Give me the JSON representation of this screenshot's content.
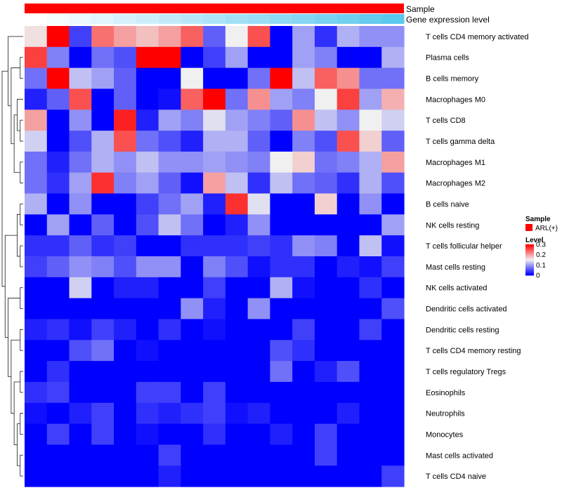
{
  "chart_data": {
    "type": "heatmap",
    "title": "",
    "annotation_rows": [
      {
        "name": "Sample",
        "kind": "solid",
        "color": "#ff0000"
      },
      {
        "name": "Gene expression level",
        "kind": "gradient",
        "color_from": "#ffffff",
        "color_to": "#5bc8ee"
      }
    ],
    "rows": [
      "T cells CD4 memory activated",
      "Plasma cells",
      "B cells memory",
      "Macrophages M0",
      "T cells CD8",
      "T cells gamma delta",
      "Macrophages M1",
      "Macrophages M2",
      "B cells naive",
      "NK cells resting",
      "T cells follicular helper",
      "Mast cells resting",
      "NK cells activated",
      "Dendritic cells activated",
      "Dendritic cells resting",
      "T cells CD4 memory resting",
      "T cells regulatory  Tregs",
      "Eosinophils",
      "Neutrophils",
      "Monocytes",
      "Mast cells activated",
      "T cells CD4 naive"
    ],
    "n_columns": 17,
    "values": [
      [
        0.16,
        0.3,
        0.04,
        0.23,
        0.2,
        0.18,
        0.2,
        0.24,
        0.06,
        0.15,
        0.25,
        0.0,
        0.1,
        0.03,
        0.11,
        0.09,
        0.09
      ],
      [
        0.26,
        0.08,
        0.0,
        0.07,
        0.05,
        0.3,
        0.3,
        0.0,
        0.04,
        0.1,
        0.0,
        0.0,
        0.1,
        0.08,
        0.0,
        0.0,
        0.11
      ],
      [
        0.07,
        0.3,
        0.12,
        0.1,
        0.06,
        0.0,
        0.0,
        0.15,
        0.0,
        0.0,
        0.07,
        0.3,
        0.12,
        0.24,
        0.21,
        0.07,
        0.07
      ],
      [
        0.02,
        0.06,
        0.25,
        0.0,
        0.06,
        0.0,
        0.01,
        0.24,
        0.3,
        0.07,
        0.21,
        0.1,
        0.08,
        0.15,
        0.26,
        0.1,
        0.19
      ],
      [
        0.2,
        0.0,
        0.09,
        0.0,
        0.28,
        0.02,
        0.1,
        0.08,
        0.14,
        0.1,
        0.08,
        0.06,
        0.21,
        0.12,
        0.09,
        0.15,
        0.13
      ],
      [
        0.13,
        0.0,
        0.05,
        0.11,
        0.25,
        0.07,
        0.05,
        0.02,
        0.11,
        0.11,
        0.06,
        0.0,
        0.08,
        0.05,
        0.25,
        0.17,
        0.06
      ],
      [
        0.07,
        0.02,
        0.07,
        0.11,
        0.09,
        0.12,
        0.09,
        0.09,
        0.1,
        0.09,
        0.08,
        0.15,
        0.17,
        0.07,
        0.08,
        0.11,
        0.2
      ],
      [
        0.07,
        0.03,
        0.1,
        0.27,
        0.08,
        0.1,
        0.06,
        0.01,
        0.2,
        0.12,
        0.03,
        0.12,
        0.07,
        0.06,
        0.03,
        0.11,
        0.05
      ],
      [
        0.11,
        0.0,
        0.09,
        0.0,
        0.0,
        0.04,
        0.07,
        0.1,
        0.02,
        0.27,
        0.14,
        0.0,
        0.0,
        0.17,
        0.0,
        0.09,
        0.0
      ],
      [
        0.0,
        0.1,
        0.0,
        0.06,
        0.0,
        0.05,
        0.12,
        0.07,
        0.0,
        0.02,
        0.09,
        0.0,
        0.0,
        0.0,
        0.0,
        0.0,
        0.1
      ],
      [
        0.03,
        0.03,
        0.06,
        0.03,
        0.04,
        0.0,
        0.0,
        0.03,
        0.03,
        0.03,
        0.04,
        0.03,
        0.09,
        0.08,
        0.0,
        0.12,
        0.01
      ],
      [
        0.04,
        0.06,
        0.09,
        0.08,
        0.05,
        0.09,
        0.09,
        0.0,
        0.08,
        0.05,
        0.01,
        0.03,
        0.03,
        0.0,
        0.02,
        0.01,
        0.04
      ],
      [
        0.0,
        0.0,
        0.13,
        0.0,
        0.02,
        0.02,
        0.0,
        0.0,
        0.04,
        0.0,
        0.0,
        0.11,
        0.01,
        0.0,
        0.0,
        0.03,
        0.0
      ],
      [
        0.0,
        0.0,
        0.0,
        0.0,
        0.0,
        0.0,
        0.0,
        0.09,
        0.02,
        0.0,
        0.09,
        0.0,
        0.0,
        0.0,
        0.0,
        0.0,
        0.05
      ],
      [
        0.02,
        0.03,
        0.01,
        0.04,
        0.02,
        0.0,
        0.03,
        0.0,
        0.01,
        0.0,
        0.0,
        0.0,
        0.04,
        0.0,
        0.0,
        0.04,
        0.0
      ],
      [
        0.0,
        0.0,
        0.05,
        0.07,
        0.0,
        0.01,
        0.0,
        0.0,
        0.0,
        0.0,
        0.0,
        0.05,
        0.03,
        0.0,
        0.0,
        0.0,
        0.0
      ],
      [
        0.0,
        0.03,
        0.0,
        0.0,
        0.0,
        0.0,
        0.0,
        0.0,
        0.0,
        0.0,
        0.0,
        0.07,
        0.0,
        0.02,
        0.05,
        0.0,
        0.0
      ],
      [
        0.03,
        0.04,
        0.0,
        0.0,
        0.0,
        0.04,
        0.04,
        0.0,
        0.04,
        0.0,
        0.0,
        0.0,
        0.0,
        0.0,
        0.0,
        0.0,
        0.0
      ],
      [
        0.01,
        0.0,
        0.02,
        0.04,
        0.0,
        0.03,
        0.02,
        0.03,
        0.04,
        0.01,
        0.02,
        0.0,
        0.0,
        0.0,
        0.02,
        0.0,
        0.0
      ],
      [
        0.0,
        0.04,
        0.0,
        0.04,
        0.0,
        0.01,
        0.0,
        0.0,
        0.03,
        0.0,
        0.0,
        0.02,
        0.0,
        0.04,
        0.0,
        0.0,
        0.0
      ],
      [
        0.0,
        0.0,
        0.0,
        0.0,
        0.0,
        0.0,
        0.04,
        0.0,
        0.0,
        0.0,
        0.0,
        0.0,
        0.0,
        0.04,
        0.0,
        0.0,
        0.0
      ],
      [
        0.0,
        0.0,
        0.0,
        0.0,
        0.0,
        0.0,
        0.02,
        0.0,
        0.0,
        0.0,
        0.0,
        0.0,
        0.0,
        0.0,
        0.0,
        0.0,
        0.04
      ]
    ],
    "color_scale": {
      "low": "#0000ff",
      "mid": "#f0f0f0",
      "high": "#ff0000",
      "domain": [
        0,
        0.15,
        0.3
      ]
    },
    "legends": {
      "sample": {
        "title": "Sample",
        "items": [
          {
            "label": "ARL(+)",
            "color": "#ff0000"
          }
        ]
      },
      "level": {
        "title": "Level",
        "ticks": [
          {
            "value": 0.3,
            "label": "0.3"
          },
          {
            "value": 0.2,
            "label": "0.2"
          },
          {
            "value": 0.1,
            "label": "0.1"
          },
          {
            "value": 0,
            "label": "0"
          }
        ]
      }
    },
    "dendrogram": "hierarchical row clustering (left side)"
  }
}
